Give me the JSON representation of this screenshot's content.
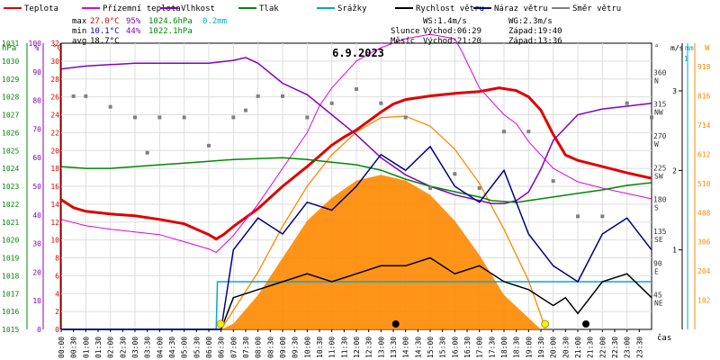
{
  "legend": [
    {
      "label": "Teplota",
      "color": "#e00000"
    },
    {
      "label": "Přízemní teplota",
      "color": "#e000e0"
    },
    {
      "label": "Vlhkost",
      "color": "#8800bb"
    },
    {
      "label": "Tlak",
      "color": "#008800"
    },
    {
      "label": "Srážky",
      "color": "#00aacc"
    },
    {
      "label": "Rychlost větru",
      "color": "#000000"
    },
    {
      "label": "Náraz větru",
      "color": "#000088"
    },
    {
      "label": "Směr větru",
      "color": "#808080"
    }
  ],
  "stats": {
    "max": {
      "label": "max",
      "temp": "27.0°C",
      "hum": "95%",
      "press": "1024.6hPa",
      "rain": "0.2mm"
    },
    "min": {
      "label": "min",
      "temp": "10.1°C",
      "hum": "44%",
      "press": "1022.1hPa"
    },
    "avg": {
      "label": "avg",
      "temp": "18.7°C"
    }
  },
  "wind_info": {
    "ws": "WS:1.4m/s",
    "wg": "WG:2.3m/s"
  },
  "sun": {
    "label": "Slunce",
    "rise": "Východ:06:29",
    "set": "Západ:19:40"
  },
  "moon": {
    "label": "Měsíc",
    "rise": "Východ:21:20",
    "set": "Západ:13:36"
  },
  "date": "6.9.2023",
  "axes": {
    "pressure": {
      "unit": "hPa",
      "ticks": [
        "1015",
        "1016",
        "1017",
        "1018",
        "1019",
        "1020",
        "1021",
        "1022",
        "1023",
        "1024",
        "1025",
        "1026",
        "1027",
        "1028",
        "1029",
        "1030",
        "1031"
      ]
    },
    "humidity": {
      "unit": "%",
      "ticks": [
        "0",
        "10",
        "20",
        "30",
        "40",
        "50",
        "60",
        "70",
        "80",
        "90",
        "100"
      ]
    },
    "temperature": {
      "unit": "°C",
      "ticks": [
        "0",
        "2",
        "4",
        "6",
        "8",
        "10",
        "12",
        "14",
        "16",
        "18",
        "20",
        "22",
        "24",
        "26",
        "28",
        "30",
        "32"
      ]
    },
    "direction": {
      "unit": "°",
      "ticks": [
        {
          "deg": "360",
          "dir": "N"
        },
        {
          "deg": "315",
          "dir": "NW"
        },
        {
          "deg": "270",
          "dir": "W"
        },
        {
          "deg": "225",
          "dir": "SW"
        },
        {
          "deg": "180",
          "dir": "S"
        },
        {
          "deg": "135",
          "dir": "SE"
        },
        {
          "deg": "90",
          "dir": "E"
        },
        {
          "deg": "45",
          "dir": "NE"
        }
      ]
    },
    "wind": {
      "unit": "m/s",
      "ticks": [
        "1",
        "2",
        "3"
      ]
    },
    "rain": {
      "unit": "mm",
      "ticks": [
        "0",
        "1"
      ]
    },
    "solar": {
      "unit": "W",
      "ticks": [
        "102",
        "204",
        "306",
        "408",
        "510",
        "612",
        "714",
        "816",
        "918"
      ]
    },
    "time_label": "čas",
    "time_ticks": [
      "00:00",
      "00:30",
      "01:00",
      "01:30",
      "02:00",
      "02:30",
      "03:00",
      "03:30",
      "04:00",
      "04:30",
      "05:00",
      "05:30",
      "06:00",
      "06:30",
      "07:00",
      "07:30",
      "08:00",
      "08:30",
      "09:00",
      "09:30",
      "10:00",
      "10:30",
      "11:00",
      "11:30",
      "12:00",
      "12:30",
      "13:00",
      "13:30",
      "14:00",
      "14:30",
      "15:00",
      "15:30",
      "16:00",
      "16:30",
      "17:00",
      "17:30",
      "18:00",
      "18:30",
      "19:00",
      "19:30",
      "20:00",
      "20:30",
      "21:00",
      "21:30",
      "22:00",
      "22:30",
      "23:00",
      "23:30"
    ]
  },
  "chart_data": {
    "type": "line",
    "title": "6.9.2023",
    "x_unit": "hours",
    "series": [
      {
        "name": "Teplota",
        "color": "#e00000",
        "axis": "temperature",
        "points": [
          [
            0,
            14.5
          ],
          [
            0.5,
            13.6
          ],
          [
            1,
            13.2
          ],
          [
            2,
            12.9
          ],
          [
            3,
            12.7
          ],
          [
            4,
            12.3
          ],
          [
            5,
            11.8
          ],
          [
            5.5,
            11.2
          ],
          [
            6,
            10.6
          ],
          [
            6.3,
            10.1
          ],
          [
            6.6,
            10.6
          ],
          [
            7,
            11.5
          ],
          [
            8,
            13.5
          ],
          [
            9,
            16.0
          ],
          [
            10,
            18.2
          ],
          [
            10.5,
            19.4
          ],
          [
            11,
            20.6
          ],
          [
            11.5,
            21.5
          ],
          [
            12,
            22.3
          ],
          [
            13,
            24.3
          ],
          [
            13.5,
            25.2
          ],
          [
            14,
            25.7
          ],
          [
            15,
            26.1
          ],
          [
            16,
            26.4
          ],
          [
            17,
            26.6
          ],
          [
            17.8,
            27.0
          ],
          [
            18.5,
            26.7
          ],
          [
            19,
            26.0
          ],
          [
            19.5,
            24.5
          ],
          [
            20,
            21.8
          ],
          [
            20.5,
            19.5
          ],
          [
            21,
            18.9
          ],
          [
            22,
            18.2
          ],
          [
            23,
            17.5
          ],
          [
            24,
            16.9
          ]
        ]
      },
      {
        "name": "Přízemní teplota",
        "color": "#e000e0",
        "axis": "temperature",
        "points": [
          [
            0,
            12.3
          ],
          [
            1,
            11.6
          ],
          [
            2,
            11.2
          ],
          [
            3,
            10.9
          ],
          [
            4,
            10.6
          ],
          [
            5,
            9.8
          ],
          [
            6,
            9.0
          ],
          [
            6.3,
            8.6
          ],
          [
            7,
            10.5
          ],
          [
            8,
            14.0
          ],
          [
            9,
            18.0
          ],
          [
            10,
            22.0
          ],
          [
            10.5,
            25.0
          ],
          [
            11,
            27.0
          ],
          [
            11.5,
            28.5
          ],
          [
            12,
            30.0
          ],
          [
            12.5,
            30.8
          ],
          [
            13,
            31.5
          ],
          [
            14,
            32.5
          ],
          [
            15,
            33.0
          ],
          [
            16,
            32.5
          ],
          [
            16.3,
            31.0
          ],
          [
            17,
            27.0
          ],
          [
            17.5,
            25.5
          ],
          [
            18,
            24.0
          ],
          [
            18.5,
            23.0
          ],
          [
            19,
            21.0
          ],
          [
            20,
            18.0
          ],
          [
            21,
            16.5
          ],
          [
            22,
            15.8
          ],
          [
            23,
            15.2
          ],
          [
            24,
            14.6
          ]
        ]
      },
      {
        "name": "Vlhkost",
        "color": "#8800bb",
        "axis": "humidity",
        "points": [
          [
            0,
            91
          ],
          [
            1,
            92
          ],
          [
            2,
            92.5
          ],
          [
            3,
            93
          ],
          [
            4,
            93
          ],
          [
            5,
            93
          ],
          [
            6,
            93
          ],
          [
            7,
            94
          ],
          [
            7.5,
            95
          ],
          [
            8,
            93
          ],
          [
            9,
            86
          ],
          [
            10,
            82
          ],
          [
            11,
            75
          ],
          [
            12,
            68
          ],
          [
            13,
            60
          ],
          [
            14,
            54
          ],
          [
            15,
            50
          ],
          [
            16,
            47
          ],
          [
            17,
            45
          ],
          [
            17.5,
            44
          ],
          [
            18,
            44
          ],
          [
            18.5,
            45
          ],
          [
            19,
            48
          ],
          [
            19.5,
            56
          ],
          [
            20,
            66
          ],
          [
            21,
            75
          ],
          [
            22,
            77
          ],
          [
            23,
            78
          ],
          [
            24,
            79
          ]
        ]
      },
      {
        "name": "Tlak",
        "color": "#008800",
        "axis": "pressure",
        "points": [
          [
            0,
            1024.1
          ],
          [
            1,
            1024.0
          ],
          [
            2,
            1024.0
          ],
          [
            3,
            1024.1
          ],
          [
            4,
            1024.2
          ],
          [
            5,
            1024.3
          ],
          [
            6,
            1024.4
          ],
          [
            7,
            1024.5
          ],
          [
            8,
            1024.55
          ],
          [
            9,
            1024.6
          ],
          [
            10,
            1024.5
          ],
          [
            11,
            1024.35
          ],
          [
            12,
            1024.2
          ],
          [
            13,
            1023.9
          ],
          [
            14,
            1023.4
          ],
          [
            15,
            1023.0
          ],
          [
            16,
            1022.7
          ],
          [
            17,
            1022.4
          ],
          [
            17.5,
            1022.2
          ],
          [
            18,
            1022.15
          ],
          [
            18.5,
            1022.1
          ],
          [
            19,
            1022.2
          ],
          [
            20,
            1022.4
          ],
          [
            21,
            1022.6
          ],
          [
            22,
            1022.8
          ],
          [
            23,
            1023.05
          ],
          [
            24,
            1023.2
          ]
        ]
      },
      {
        "name": "Srážky",
        "color": "#00aacc",
        "axis": "rain",
        "points": [
          [
            0,
            0
          ],
          [
            6.3,
            0
          ],
          [
            6.35,
            0.2
          ],
          [
            24,
            0.2
          ]
        ]
      },
      {
        "name": "Rychlost větru",
        "color": "#000000",
        "axis": "wind",
        "points": [
          [
            0,
            0
          ],
          [
            6.5,
            0
          ],
          [
            7,
            0.4
          ],
          [
            8,
            0.5
          ],
          [
            9,
            0.6
          ],
          [
            10,
            0.7
          ],
          [
            11,
            0.6
          ],
          [
            12,
            0.7
          ],
          [
            13,
            0.8
          ],
          [
            14,
            0.8
          ],
          [
            15,
            0.9
          ],
          [
            16,
            0.7
          ],
          [
            17,
            0.8
          ],
          [
            18,
            0.6
          ],
          [
            19,
            0.5
          ],
          [
            20,
            0.3
          ],
          [
            20.5,
            0.4
          ],
          [
            21,
            0.2
          ],
          [
            21.5,
            0.4
          ],
          [
            22,
            0.6
          ],
          [
            23,
            0.7
          ],
          [
            24,
            0.4
          ]
        ]
      },
      {
        "name": "Náraz větru",
        "color": "#000088",
        "axis": "wind",
        "points": [
          [
            0,
            0
          ],
          [
            6.5,
            0
          ],
          [
            7,
            1.0
          ],
          [
            8,
            1.4
          ],
          [
            9,
            1.2
          ],
          [
            10,
            1.6
          ],
          [
            11,
            1.5
          ],
          [
            12,
            1.8
          ],
          [
            13,
            2.2
          ],
          [
            14,
            2.0
          ],
          [
            15,
            2.3
          ],
          [
            16,
            1.8
          ],
          [
            17,
            1.6
          ],
          [
            18,
            2.0
          ],
          [
            19,
            1.2
          ],
          [
            20,
            0.8
          ],
          [
            21,
            0.6
          ],
          [
            22,
            1.2
          ],
          [
            23,
            1.4
          ],
          [
            24,
            1.0
          ]
        ]
      },
      {
        "name": "Směr větru",
        "color": "#808080",
        "axis": "direction",
        "style": "points",
        "points": [
          [
            0.5,
            330
          ],
          [
            1,
            330
          ],
          [
            2,
            315
          ],
          [
            3,
            300
          ],
          [
            3.5,
            250
          ],
          [
            4,
            300
          ],
          [
            5,
            300
          ],
          [
            6,
            260
          ],
          [
            7,
            300
          ],
          [
            7.5,
            310
          ],
          [
            8,
            330
          ],
          [
            9,
            330
          ],
          [
            10,
            300
          ],
          [
            11,
            320
          ],
          [
            12,
            340
          ],
          [
            13,
            320
          ],
          [
            14,
            300
          ],
          [
            15,
            200
          ],
          [
            16,
            220
          ],
          [
            17,
            200
          ],
          [
            18,
            280
          ],
          [
            19,
            280
          ],
          [
            20,
            210
          ],
          [
            21,
            160
          ],
          [
            22,
            160
          ],
          [
            23,
            320
          ],
          [
            24,
            300
          ]
        ]
      },
      {
        "name": "Solární radiace",
        "color": "#ff8800",
        "axis": "solar",
        "style": "area",
        "points": [
          [
            6.5,
            0
          ],
          [
            7,
            20
          ],
          [
            8,
            120
          ],
          [
            9,
            250
          ],
          [
            10,
            380
          ],
          [
            11,
            460
          ],
          [
            12,
            520
          ],
          [
            13,
            540
          ],
          [
            14,
            520
          ],
          [
            15,
            470
          ],
          [
            16,
            380
          ],
          [
            17,
            260
          ],
          [
            18,
            120
          ],
          [
            19,
            40
          ],
          [
            19.5,
            0
          ]
        ]
      },
      {
        "name": "Teoretická radiace",
        "color": "#ff8800",
        "axis": "solar",
        "style": "line",
        "points": [
          [
            6.5,
            0
          ],
          [
            8,
            200
          ],
          [
            9,
            360
          ],
          [
            10,
            500
          ],
          [
            11,
            610
          ],
          [
            12,
            690
          ],
          [
            13,
            740
          ],
          [
            14,
            745
          ],
          [
            15,
            710
          ],
          [
            16,
            630
          ],
          [
            17,
            510
          ],
          [
            18,
            350
          ],
          [
            19,
            170
          ],
          [
            19.7,
            0
          ]
        ]
      }
    ]
  }
}
